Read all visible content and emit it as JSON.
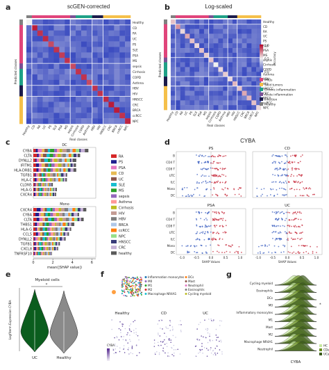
{
  "panels": {
    "a": {
      "letter": "a",
      "title": "scGEN-corrected"
    },
    "b": {
      "letter": "b",
      "title": "Log-scaled"
    },
    "c": {
      "letter": "c"
    },
    "d": {
      "letter": "d",
      "title": "CYBA"
    },
    "e": {
      "letter": "e"
    },
    "f": {
      "letter": "f"
    },
    "g": {
      "letter": "g"
    }
  },
  "heatmap": {
    "row_labels": [
      "Healthy",
      "CD",
      "RA",
      "UC",
      "PS",
      "SLE",
      "PSA",
      "MS",
      "sepsis",
      "Cirrhosis",
      "COPD",
      "Asthma",
      "HBV",
      "HIV",
      "HNSCC",
      "CRC",
      "BRCA",
      "ccRCC",
      "NPC"
    ],
    "col_labels": [
      "Healthy",
      "CD",
      "RA",
      "UC",
      "PS",
      "SLE",
      "PSA",
      "MS",
      "sepsis",
      "Cirrhosis",
      "COPD",
      "Asthma",
      "HBV",
      "HIV",
      "HNSCC",
      "CRC",
      "BRCA",
      "ccRCC",
      "NPC"
    ],
    "ylabel": "Predicted classes",
    "xlabel": "Real classes",
    "colorbar": {
      "label": "Accuracy",
      "max": "1.0",
      "mid": "0.5",
      "min": "0.0"
    },
    "legend": [
      {
        "name": "IMIDs",
        "color": "#e0457b"
      },
      {
        "name": "Solid tumors",
        "color": "#f5c04a"
      },
      {
        "name": "Chronic inflammation",
        "color": "#1fa187"
      },
      {
        "name": "Acute inflammation",
        "color": "#7a5195"
      },
      {
        "name": "Infection",
        "color": "#1b1b4b"
      },
      {
        "name": "Healthy",
        "color": "#808080"
      }
    ]
  },
  "shap": {
    "top_title": "DC",
    "bottom_title": "Mono",
    "top_genes": [
      "CYBA",
      "CLTA",
      "DYNLL2",
      "IFITM1",
      "HLA-DRB1",
      "TGFB1",
      "HLA-C",
      "CLDN5",
      "HLA-G",
      "CXCR4"
    ],
    "bottom_genes": [
      "CXCR4",
      "CYBA",
      "CLTA",
      "THBS1",
      "HLA-G",
      "CCL5",
      "DYNLL2",
      "TGFB1",
      "CXCL8",
      "TNFRSF10"
    ],
    "xlabel": "mean(|SHAP value|)",
    "xticks": [
      "0",
      "2",
      "4",
      "6"
    ],
    "legend": [
      {
        "name": "RA",
        "color": "#d62728"
      },
      {
        "name": "PS",
        "color": "#1f1f8f"
      },
      {
        "name": "PSA",
        "color": "#e377c2"
      },
      {
        "name": "CD",
        "color": "#e7ba52"
      },
      {
        "name": "UC",
        "color": "#8c564b"
      },
      {
        "name": "SLE",
        "color": "#17becf"
      },
      {
        "name": "MS",
        "color": "#2ca02c"
      },
      {
        "name": "sepsis",
        "color": "#9467bd"
      },
      {
        "name": "Asthma",
        "color": "#ff9896"
      },
      {
        "name": "Cirrhosis",
        "color": "#bcbd22"
      },
      {
        "name": "HIV",
        "color": "#c49c94"
      },
      {
        "name": "HBV",
        "color": "#7f7f7f"
      },
      {
        "name": "BRCA",
        "color": "#aec7e8"
      },
      {
        "name": "ccRCC",
        "color": "#ff7f0e"
      },
      {
        "name": "NPC",
        "color": "#98df8a"
      },
      {
        "name": "HNSCC",
        "color": "#393b79"
      },
      {
        "name": "CRC",
        "color": "#c5b0d5"
      },
      {
        "name": "healthy",
        "color": "#5a5a5a"
      }
    ]
  },
  "beeswarm": {
    "subplots": [
      "PS",
      "CD",
      "PSA",
      "UC"
    ],
    "rows": [
      "B",
      "CD4 T",
      "CD8 T",
      "UTC",
      "ILC",
      "Mono",
      "DC"
    ],
    "xlabel": "SHAP Values",
    "xticks": [
      "-1.0",
      "-0.5",
      "0.0",
      "0.5",
      "1.0"
    ]
  },
  "violin": {
    "title": "Myeloid cells",
    "ylabel": "Logfiterm Expression CYBA",
    "groups": [
      "UC",
      "Healthy"
    ],
    "significance": "*"
  },
  "umap": {
    "legend": [
      "Inflammation monocytes",
      "M0",
      "M1",
      "M2",
      "Macrophage NR4A1",
      "DCs",
      "Mast",
      "Neutrophil",
      "Eosinophils",
      "Cycling myeloid"
    ],
    "panels": [
      "Healthy",
      "CD",
      "UC"
    ],
    "colorbar_label": "CYBA"
  },
  "ridge": {
    "rows": [
      "Cycling myeloid",
      "Eosinophils",
      "DCs",
      "M0",
      "Inflammatory monocytes",
      "M1",
      "Mast",
      "M2",
      "Macrophage NR4A1",
      "Neutrophil"
    ],
    "xlabel": "CYBA",
    "legend": [
      "HC",
      "CDa",
      "UCa"
    ],
    "star": "*"
  }
}
